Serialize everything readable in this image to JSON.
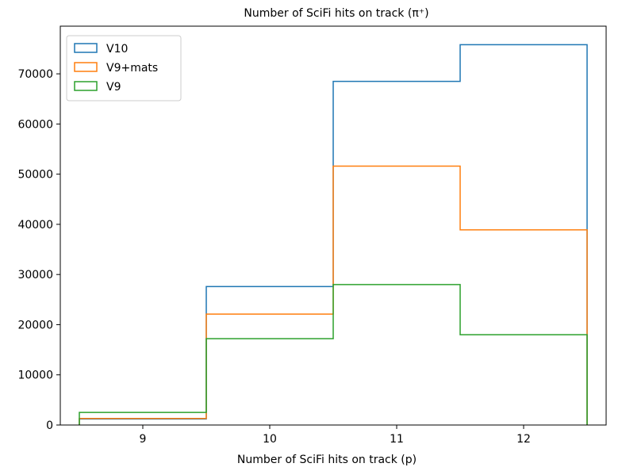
{
  "chart_data": {
    "type": "step-histogram",
    "title": "Number of SciFi hits on track (π⁺)",
    "xlabel": "Number of SciFi hits on track (p)",
    "ylabel": "",
    "xlim": [
      8.35,
      12.65
    ],
    "ylim": [
      0,
      79500
    ],
    "xticks": [
      9,
      10,
      11,
      12
    ],
    "yticks": [
      0,
      10000,
      20000,
      30000,
      40000,
      50000,
      60000,
      70000
    ],
    "bin_edges": [
      8.5,
      9.5,
      10.5,
      11.5,
      12.5
    ],
    "legend_position": "upper-left",
    "series": [
      {
        "name": "V10",
        "color": "#1f77b4",
        "values": [
          1200,
          27600,
          68500,
          75800
        ]
      },
      {
        "name": "V9+mats",
        "color": "#ff7f0e",
        "values": [
          1300,
          22100,
          51600,
          38900
        ]
      },
      {
        "name": "V9",
        "color": "#2ca02c",
        "values": [
          2500,
          17200,
          28000,
          18000
        ]
      }
    ]
  }
}
